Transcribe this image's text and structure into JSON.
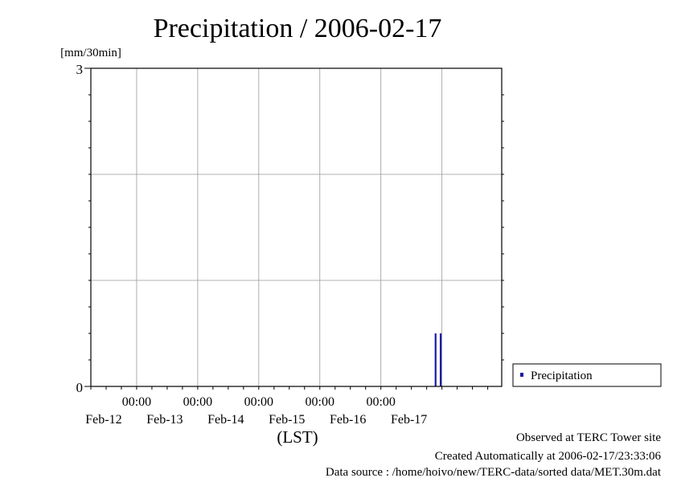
{
  "chart_data": {
    "type": "bar",
    "title": "Precipitation / 2006-02-17",
    "ylabel_unit": "[mm/30min]",
    "xlabel": "(LST)",
    "ylim": [
      0,
      3
    ],
    "y_tick_labels": [
      "0",
      "3"
    ],
    "grid": true,
    "x_range": [
      "2006-02-11T06:00",
      "2006-02-17T23:30"
    ],
    "x_ticks": [
      {
        "time": "2006-02-12T00:00",
        "line1": "00:00",
        "line2": "Feb-12"
      },
      {
        "time": "2006-02-13T00:00",
        "line1": "00:00",
        "line2": "Feb-13"
      },
      {
        "time": "2006-02-14T00:00",
        "line1": "00:00",
        "line2": "Feb-14"
      },
      {
        "time": "2006-02-15T00:00",
        "line1": "00:00",
        "line2": "Feb-15"
      },
      {
        "time": "2006-02-16T00:00",
        "line1": "00:00",
        "line2": "Feb-16"
      },
      {
        "time": "2006-02-17T00:00",
        "line1": "",
        "line2": "Feb-17"
      }
    ],
    "series": [
      {
        "name": "Precipitation",
        "color": "#1a1aa8",
        "points": [
          {
            "time": "2006-02-16T21:30",
            "value": 0.5
          },
          {
            "time": "2006-02-16T23:30",
            "value": 0.5
          }
        ]
      }
    ],
    "legend_position": "right"
  },
  "footer": {
    "line1": "Observed at TERC Tower site",
    "line2": "Created Automatically at 2006-02-17/23:33:06",
    "line3": "Data source : /home/hoivo/new/TERC-data/sorted  data/MET.30m.dat"
  }
}
